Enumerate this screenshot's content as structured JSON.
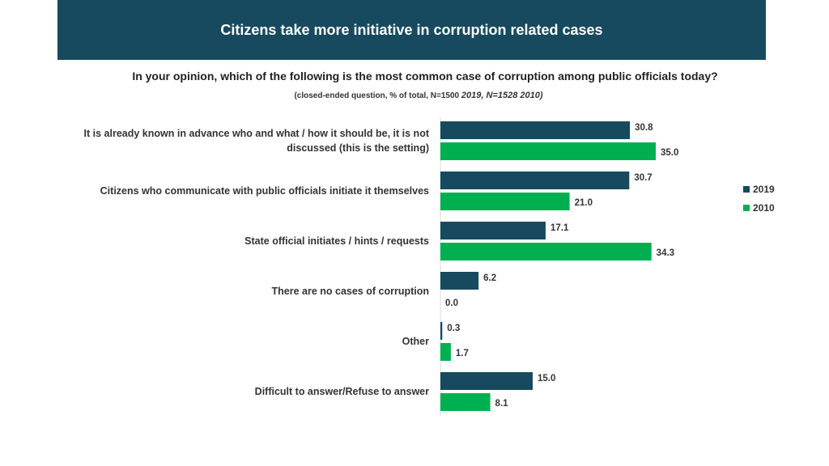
{
  "header": {
    "title": "Citizens take more initiative in corruption related cases"
  },
  "question": "In your opinion, which of the following is the most common case of corruption among public officials today?",
  "note": {
    "main": "(closed-ended question, %  of total, N=1500 ",
    "years": "2019, N=1528 2010)"
  },
  "colors": {
    "banner": "#174a5e",
    "series_2019": "#174a5e",
    "series_2010": "#00b050"
  },
  "chart_data": {
    "type": "bar",
    "orientation": "horizontal",
    "categories": [
      "It is already known in advance who and what / how it should be, it is not discussed (this is the setting)",
      "Citizens who communicate with public officials initiate it themselves",
      "State official initiates / hints / requests",
      "There are no cases of corruption",
      "Other",
      "Difficult to answer/Refuse to answer"
    ],
    "series": [
      {
        "name": "2019",
        "values": [
          30.8,
          30.7,
          17.1,
          6.2,
          0.3,
          15.0
        ],
        "labels": [
          "30.8",
          "30.7",
          "17.1",
          "6.2",
          "0.3",
          "15.0"
        ]
      },
      {
        "name": "2010",
        "values": [
          35.0,
          21.0,
          34.3,
          0.0,
          1.7,
          8.1
        ],
        "labels": [
          "35.0",
          "21.0",
          "34.3",
          "0.0",
          "1.7",
          "8.1"
        ]
      }
    ],
    "xlim": [
      0,
      40
    ],
    "legend_position": "right",
    "grid": false
  }
}
